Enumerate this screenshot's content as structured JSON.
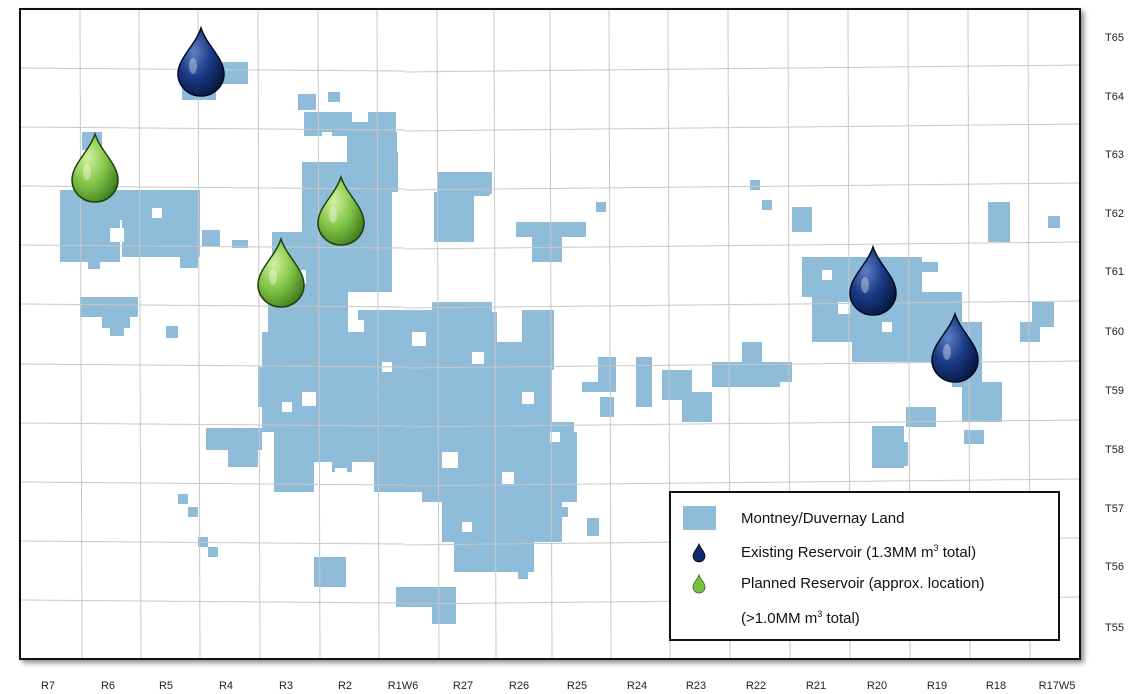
{
  "colors": {
    "land": "#8fbcd9",
    "grid": "#c8c8c8",
    "existing_reservoir": "#0f2a6b",
    "planned_reservoir": "#7dbf3f"
  },
  "township_labels": [
    "T65",
    "T64",
    "T63",
    "T62",
    "T61",
    "T60",
    "T59",
    "T58",
    "T57",
    "T56",
    "T55"
  ],
  "range_labels": [
    "R7",
    "R6",
    "R5",
    "R4",
    "R3",
    "R2",
    "R1W6",
    "R27",
    "R26",
    "R25",
    "R24",
    "R23",
    "R22",
    "R21",
    "R20",
    "R19",
    "R18",
    "R17W5"
  ],
  "legend": {
    "land_label": "Montney/Duvernay Land",
    "existing_label": "Existing Reservoir (1.3MM m",
    "existing_sup": "3",
    "existing_tail": " total)",
    "planned_label": "Planned Reservoir (approx. location)",
    "planned_line2": "(>1.0MM m",
    "planned_sup": "3",
    "planned_tail": " total)"
  },
  "reservoirs": {
    "existing_count": 3,
    "planned_count": 3,
    "existing_icon": "water-drop-icon",
    "planned_icon": "water-drop-icon"
  }
}
